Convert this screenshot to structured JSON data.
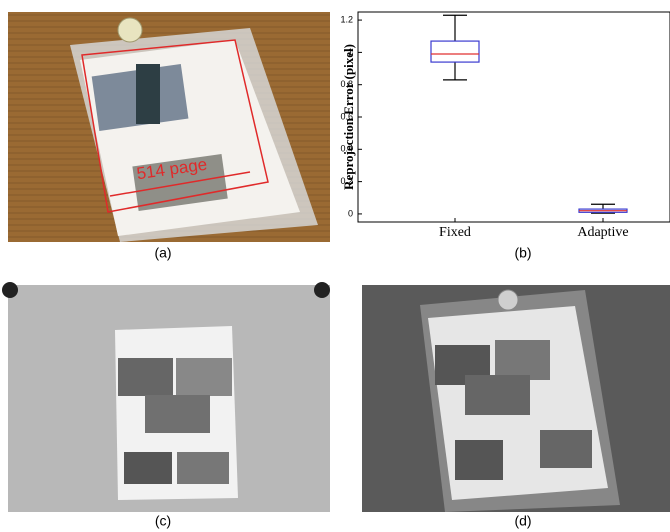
{
  "panels": [
    {
      "label": "(a)",
      "annotation": "514 page"
    },
    {
      "label": "(b)"
    },
    {
      "label": "(c)"
    },
    {
      "label": "(d)"
    }
  ],
  "chart_data": {
    "type": "box",
    "ylabel": "Reprojection Error (pixel)",
    "categories": [
      "Fixed",
      "Adaptive"
    ],
    "boxes": [
      {
        "min": 0.83,
        "q1": 0.94,
        "median": 0.99,
        "q3": 1.07,
        "max": 1.23
      },
      {
        "min": 0.005,
        "q1": 0.01,
        "median": 0.02,
        "q3": 0.03,
        "max": 0.06
      }
    ],
    "box_color": "#3a3ad0",
    "median_color": "#e03030",
    "whisker_color": "#000000",
    "ylim": [
      -0.05,
      1.25
    ],
    "yticks": [
      0,
      0.2,
      0.4,
      0.6,
      0.8,
      1,
      1.2
    ]
  }
}
